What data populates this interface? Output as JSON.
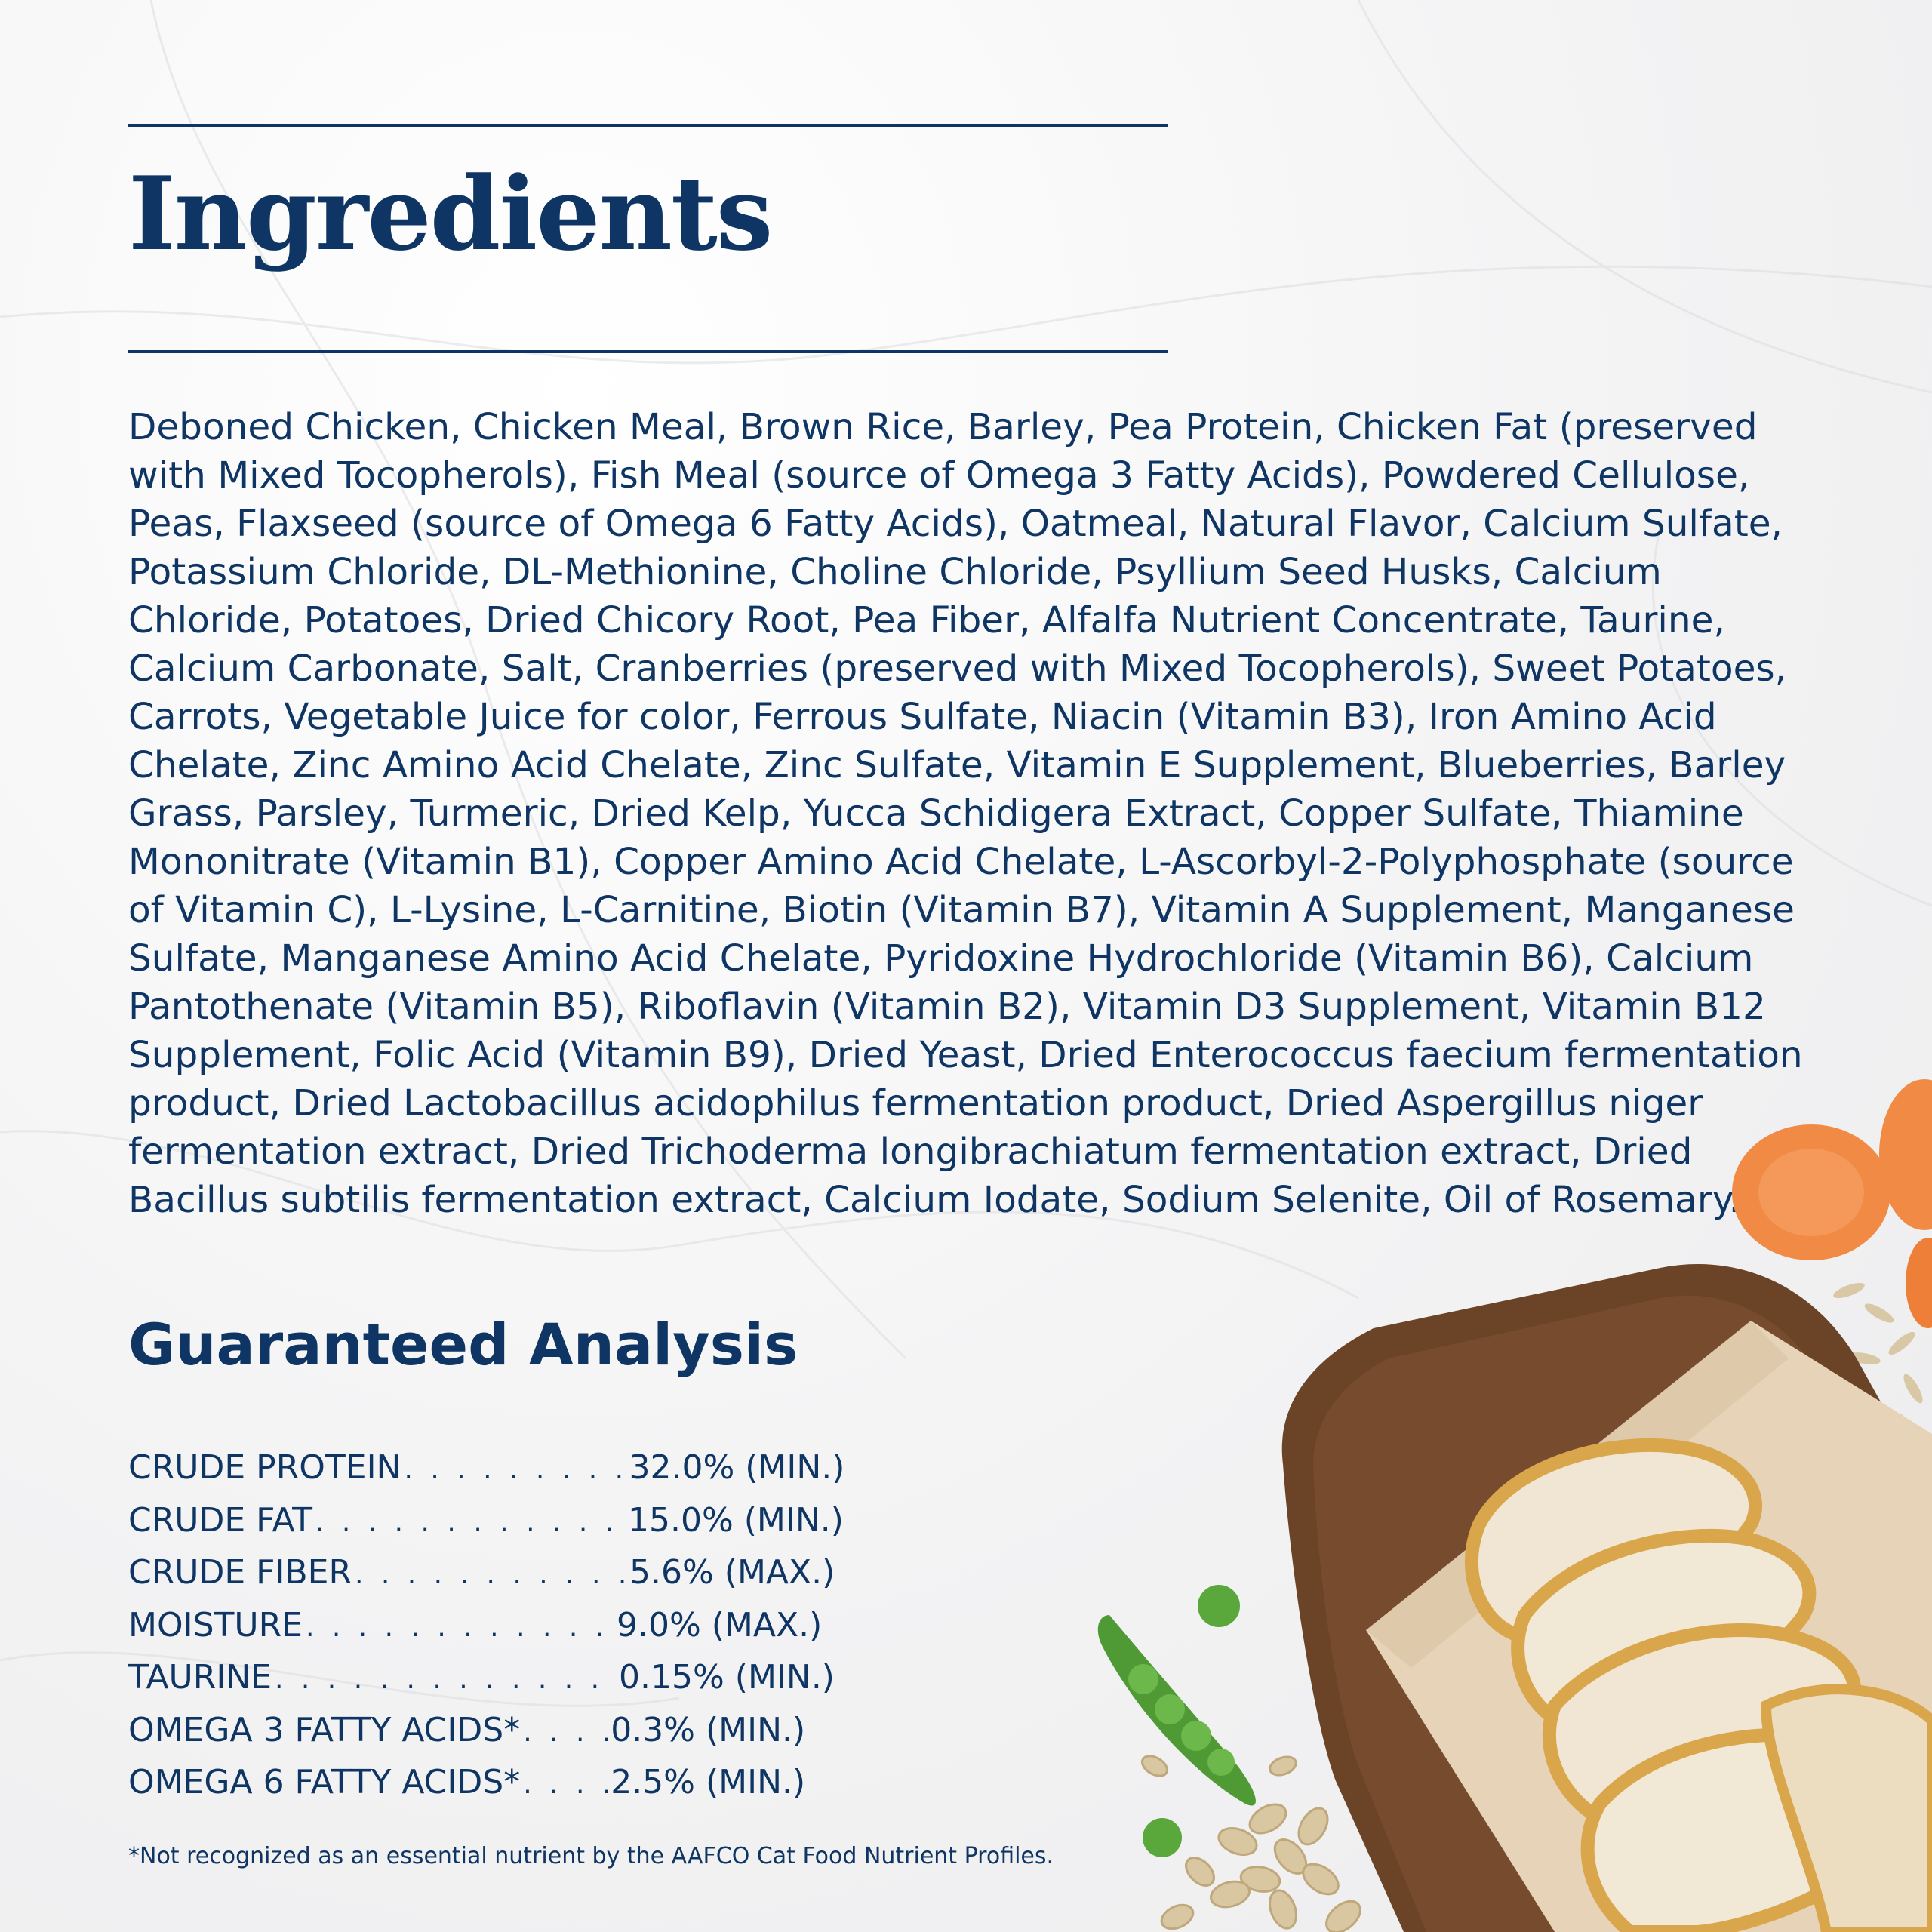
{
  "heading": "Ingredients",
  "ingredients_text": "Deboned Chicken, Chicken Meal, Brown Rice, Barley, Pea Protein, Chicken Fat (preserved with Mixed Tocopherols), Fish Meal (source of Omega 3 Fatty Acids), Powdered Cellulose, Peas, Flaxseed (source of Omega 6 Fatty Acids), Oatmeal, Natural Flavor, Calcium Sulfate, Potassium Chloride, DL-Methionine, Choline Chloride, Psyllium Seed Husks, Calcium Chloride, Potatoes, Dried Chicory Root, Pea Fiber, Alfalfa Nutrient Concentrate, Taurine, Calcium Carbonate, Salt, Cranberries (preserved with Mixed Tocopherols), Sweet Potatoes, Carrots, Vegetable Juice for color, Ferrous Sulfate, Niacin (Vitamin B3), Iron Amino Acid Chelate, Zinc Amino Acid Chelate, Zinc Sulfate, Vitamin E Supplement, Blueberries, Barley Grass, Parsley, Turmeric, Dried Kelp, Yucca Schidigera Extract, Copper Sulfate, Thiamine Mononitrate (Vitamin B1), Copper Amino Acid Chelate, L-Ascorbyl-2-Polyphosphate (source of Vitamin C), L-Lysine, L-Carnitine, Biotin (Vitamin B7), Vitamin A Supplement, Manganese Sulfate, Manganese Amino Acid Chelate, Pyridoxine Hydrochloride (Vitamin B6), Calcium Pantothenate (Vitamin B5), Riboflavin (Vitamin B2), Vitamin D3 Supplement, Vitamin B12 Supplement, Folic Acid (Vitamin B9), Dried Yeast, Dried Enterococcus faecium fermentation product, Dried Lactobacillus acidophilus fermentation product, Dried Aspergillus niger fermentation extract, Dried Trichoderma longibrachiatum fermentation extract, Dried Bacillus subtilis fermentation extract, Calcium Iodate, Sodium Selenite, Oil of Rosemary.",
  "guaranteed_analysis": {
    "title": "Guaranteed Analysis",
    "rows": [
      {
        "label": "CRUDE PROTEIN",
        "dots": ". . . . . . . . . . . . . . . . . . . . . . . .",
        "value": "32.0% (MIN.)"
      },
      {
        "label": "CRUDE FAT",
        "dots": ". . . . . . . . . . . . . . . . . . . . . . . . . . . . .",
        "value": "15.0% (MIN.)"
      },
      {
        "label": "CRUDE FIBER",
        "dots": ". . . . . . . . . . . . . . . . . . . . . . . . . .",
        "value": "5.6% (MAX.)"
      },
      {
        "label": "MOISTURE",
        "dots": ". . . . . . . . . . . . . . . . . . . . . . . . . . . . . .",
        "value": "9.0% (MAX.)"
      },
      {
        "label": "TAURINE",
        "dots": ". . . . . . . . . . . . . . . . . . . . . . . . . . . . . . . .",
        "value": "0.15% (MIN.)"
      },
      {
        "label": "OMEGA 3 FATTY ACIDS*",
        "dots": ". . . . . . . . . . .",
        "value": "0.3% (MIN.)"
      },
      {
        "label": "OMEGA 6 FATTY ACIDS*",
        "dots": ". . . . . . . . . . .",
        "value": "2.5% (MIN.)"
      }
    ]
  },
  "footnote": "*Not recognized as an essential nutrient by the AAFCO Cat Food Nutrient Profiles.",
  "colors": {
    "navy": "#0e3563",
    "board": "#6b4326",
    "paper": "#e6d3b8",
    "chicken": "#f1e6d3",
    "sear": "#d9a64c",
    "carrot": "#f08a45",
    "pea": "#4f9a35",
    "oat": "#d9c7a2"
  },
  "icons": [
    "chicken-slices-illustration",
    "cutting-board-illustration",
    "carrot-slice-icon",
    "pea-pod-icon",
    "oat-flakes-icon"
  ]
}
